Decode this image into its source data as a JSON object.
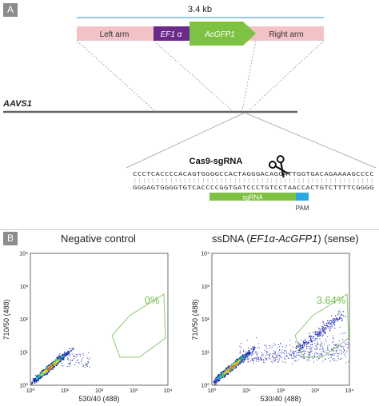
{
  "panel_a": {
    "label": "A",
    "size_label": "3.4 kb",
    "segments": {
      "left_arm": "Left arm",
      "ef1a": "EF1 α",
      "acgfp1": "AcGFP1",
      "right_arm": "Right arm"
    },
    "locus_label": "AAVS1",
    "cas9_label": "Cas9-sgRNA",
    "seq_top": "CCCTCACCCCACAGTGGGGCCACTAGGGACAGGATTGGTGACAGAAAAGCCCC",
    "seq_bottom": "GGGAGTGGGGTGTCACCCCGGTGATCCCTGTCCTAACCACTGTCTTTTCGGGG",
    "sgrna_label": "sgRNA",
    "pam_label": "PAM",
    "colors": {
      "arm": "#f2c2c6",
      "ef1a": "#6b2a8a",
      "acgfp": "#7dc242",
      "sgrna": "#7dc242",
      "pam": "#29a9e0",
      "bracket": "#5aa7e0"
    }
  },
  "panel_b": {
    "label": "B",
    "plots": [
      {
        "title": "Negative control",
        "gate_percent": "0%"
      },
      {
        "title_prefix": "ssDNA (",
        "title_italic": "EF1α-AcGFP1",
        "title_suffix": ") (sense)",
        "gate_percent": "3.64%"
      }
    ],
    "x_axis_label": "530/40 (488)",
    "y_axis_label": "710/50 (488)",
    "tick_labels": [
      "10⁰",
      "10¹",
      "10²",
      "10³",
      "10⁴"
    ],
    "gate_color": "#8cc86e"
  }
}
